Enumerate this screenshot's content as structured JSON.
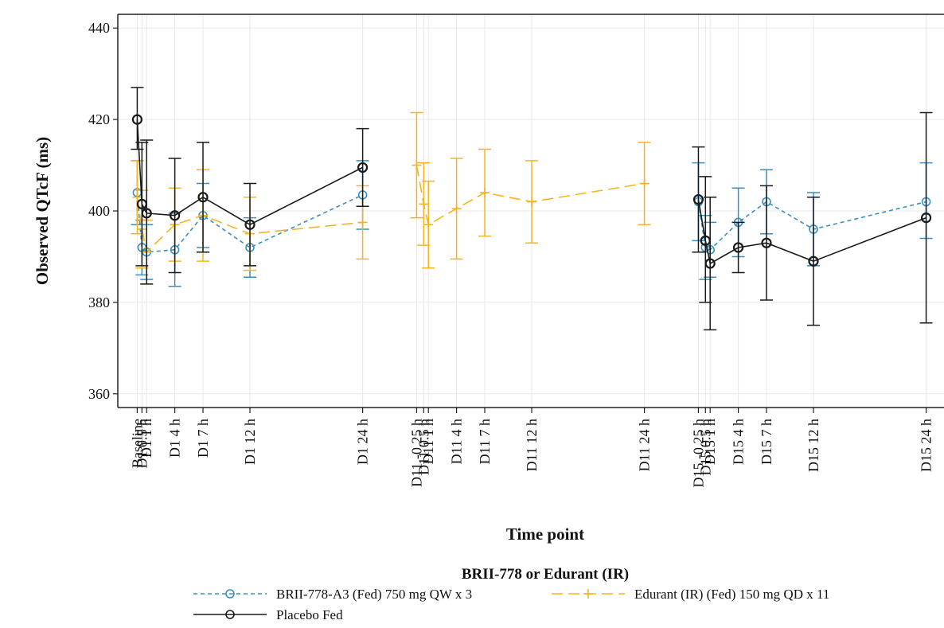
{
  "chart_data": {
    "type": "line",
    "ylabel": "Observed QTcF (ms)",
    "xlabel": "Time point",
    "ylim": [
      357,
      443
    ],
    "yticks": [
      360,
      380,
      400,
      420,
      440
    ],
    "grid": true,
    "legend_title": "BRII-778 or Edurant (IR)",
    "legend_position": "bottom",
    "x_ticks": [
      {
        "label": "Baseline",
        "t": 0
      },
      {
        "label": "D1 0.5 h",
        "t": 0.5
      },
      {
        "label": "D1 1 h",
        "t": 1
      },
      {
        "label": "D1 4 h",
        "t": 4
      },
      {
        "label": "D1 7 h",
        "t": 7
      },
      {
        "label": "D1 12 h",
        "t": 12
      },
      {
        "label": "D1 24 h",
        "t": 24
      },
      {
        "label": "D11 -0.25 h",
        "t": 29.75
      },
      {
        "label": "D11 0.5 h",
        "t": 30.5
      },
      {
        "label": "D11 1 h",
        "t": 31
      },
      {
        "label": "D11 4 h",
        "t": 34
      },
      {
        "label": "D11 7 h",
        "t": 37
      },
      {
        "label": "D11 12 h",
        "t": 42
      },
      {
        "label": "D11 24 h",
        "t": 54
      },
      {
        "label": "D15 -0.25 h",
        "t": 59.75
      },
      {
        "label": "D15 0.5 h",
        "t": 60.5
      },
      {
        "label": "D15 1 h",
        "t": 61
      },
      {
        "label": "D15 4 h",
        "t": 64
      },
      {
        "label": "D15 7 h",
        "t": 67
      },
      {
        "label": "D15 12 h",
        "t": 72
      },
      {
        "label": "D15 24 h",
        "t": 84
      }
    ],
    "series": [
      {
        "name": "BRII-778-A3 (Fed) 750 mg QW x 3",
        "color": "#3b8fbf",
        "marker": "circle",
        "dash": "short-dash",
        "segments": [
          [
            {
              "t": 0,
              "mean": 404,
              "lo": 397,
              "hi": 411
            },
            {
              "t": 0.5,
              "mean": 392,
              "lo": 386,
              "hi": 398
            },
            {
              "t": 1,
              "mean": 391,
              "lo": 385,
              "hi": 397
            },
            {
              "t": 4,
              "mean": 391.5,
              "lo": 383.5,
              "hi": 399.5
            },
            {
              "t": 7,
              "mean": 399,
              "lo": 392,
              "hi": 406
            },
            {
              "t": 12,
              "mean": 392,
              "lo": 385.5,
              "hi": 398.5
            },
            {
              "t": 24,
              "mean": 403.5,
              "lo": 396,
              "hi": 411
            }
          ],
          [
            {
              "t": 59.75,
              "mean": 402,
              "lo": 393.5,
              "hi": 410.5
            },
            {
              "t": 60.5,
              "mean": 392,
              "lo": 385,
              "hi": 399
            },
            {
              "t": 61,
              "mean": 391.5,
              "lo": 385.5,
              "hi": 397.5
            },
            {
              "t": 64,
              "mean": 397.5,
              "lo": 390,
              "hi": 405
            },
            {
              "t": 67,
              "mean": 402,
              "lo": 395,
              "hi": 409
            },
            {
              "t": 72,
              "mean": 396,
              "lo": 388,
              "hi": 404
            },
            {
              "t": 84,
              "mean": 402,
              "lo": 394,
              "hi": 410.5
            }
          ]
        ]
      },
      {
        "name": "Edurant (IR) (Fed) 150 mg QD x 11",
        "color": "#f5b41f",
        "marker": "plus",
        "dash": "long-dash",
        "segments": [
          [
            {
              "t": 0,
              "mean": 403,
              "lo": 395,
              "hi": 411
            },
            {
              "t": 0.5,
              "mean": 396,
              "lo": 387.5,
              "hi": 404.5
            },
            {
              "t": 1,
              "mean": 391,
              "lo": 384,
              "hi": 398
            },
            {
              "t": 4,
              "mean": 397,
              "lo": 389,
              "hi": 405
            },
            {
              "t": 7,
              "mean": 399,
              "lo": 389,
              "hi": 409
            },
            {
              "t": 12,
              "mean": 395,
              "lo": 387,
              "hi": 403
            },
            {
              "t": 24,
              "mean": 397.5,
              "lo": 389.5,
              "hi": 405.5
            }
          ],
          [
            {
              "t": 29.75,
              "mean": 410,
              "lo": 398.5,
              "hi": 421.5
            },
            {
              "t": 30.5,
              "mean": 401.5,
              "lo": 392.5,
              "hi": 410.5
            },
            {
              "t": 31,
              "mean": 397,
              "lo": 387.5,
              "hi": 406.5
            },
            {
              "t": 34,
              "mean": 400.5,
              "lo": 389.5,
              "hi": 411.5
            },
            {
              "t": 37,
              "mean": 404,
              "lo": 394.5,
              "hi": 413.5
            },
            {
              "t": 42,
              "mean": 402,
              "lo": 393,
              "hi": 411
            },
            {
              "t": 54,
              "mean": 406,
              "lo": 397,
              "hi": 415
            }
          ]
        ]
      },
      {
        "name": "Placebo Fed",
        "color": "#1a1a1a",
        "marker": "circle",
        "dash": "solid",
        "segments": [
          [
            {
              "t": 0,
              "mean": 420,
              "lo": 413.5,
              "hi": 427
            },
            {
              "t": 0.5,
              "mean": 401.5,
              "lo": 388,
              "hi": 415
            },
            {
              "t": 1,
              "mean": 399.5,
              "lo": 384,
              "hi": 415.5
            },
            {
              "t": 4,
              "mean": 399,
              "lo": 386.5,
              "hi": 411.5
            },
            {
              "t": 7,
              "mean": 403,
              "lo": 391,
              "hi": 415
            },
            {
              "t": 12,
              "mean": 397,
              "lo": 388,
              "hi": 406
            },
            {
              "t": 24,
              "mean": 409.5,
              "lo": 401,
              "hi": 418
            }
          ],
          [
            {
              "t": 59.75,
              "mean": 402.5,
              "lo": 391,
              "hi": 414
            },
            {
              "t": 60.5,
              "mean": 393.5,
              "lo": 380,
              "hi": 407.5
            },
            {
              "t": 61,
              "mean": 388.5,
              "lo": 374,
              "hi": 403
            },
            {
              "t": 64,
              "mean": 392,
              "lo": 386.5,
              "hi": 397.5
            },
            {
              "t": 67,
              "mean": 393,
              "lo": 380.5,
              "hi": 405.5
            },
            {
              "t": 72,
              "mean": 389,
              "lo": 375,
              "hi": 403
            },
            {
              "t": 84,
              "mean": 398.5,
              "lo": 375.5,
              "hi": 421.5
            }
          ]
        ]
      }
    ]
  }
}
